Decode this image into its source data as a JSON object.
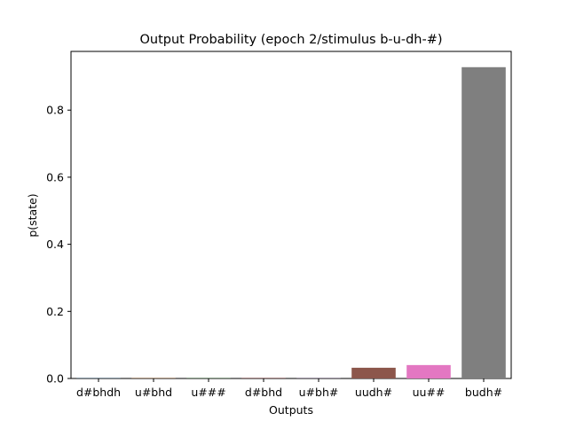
{
  "chart_data": {
    "type": "bar",
    "title": "Output Probability (epoch 2/stimulus b-u-dh-#)",
    "xlabel": "Outputs",
    "ylabel": "p(state)",
    "categories": [
      "d#bhdh",
      "u#bhd",
      "u###",
      "d#bhd",
      "u#bh#",
      "uudh#",
      "uu##",
      "budh#"
    ],
    "values": [
      0.0005,
      0.0005,
      0.0005,
      0.0005,
      0.0005,
      0.032,
      0.04,
      0.928
    ],
    "colors": [
      "#1f77b4",
      "#ff7f0e",
      "#2ca02c",
      "#d62728",
      "#9467bd",
      "#8c564b",
      "#e377c2",
      "#7f7f7f"
    ],
    "ylim": [
      0,
      0.975
    ],
    "yticks": [
      0.0,
      0.2,
      0.4,
      0.6,
      0.8
    ],
    "ytick_labels": [
      "0.0",
      "0.2",
      "0.4",
      "0.6",
      "0.8"
    ],
    "grid": false,
    "legend": "none"
  }
}
